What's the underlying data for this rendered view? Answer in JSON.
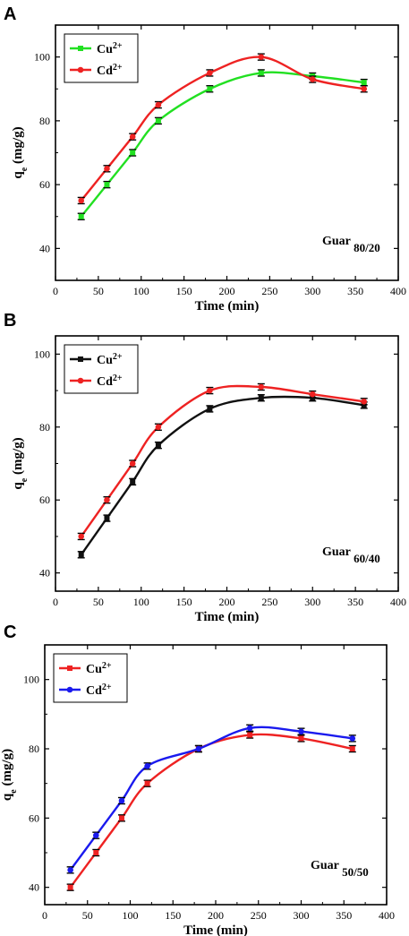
{
  "chart_data": [
    {
      "panel": "A",
      "type": "line",
      "xlabel": "Time (min)",
      "ylabel": "q",
      "ylabel_sub": "e",
      "ylabel_unit": " (mg/g)",
      "annotation": {
        "main": "Guar",
        "sub": "80/20"
      },
      "xlim": [
        0,
        400
      ],
      "ylim": [
        30,
        110
      ],
      "xticks": [
        0,
        50,
        100,
        150,
        200,
        250,
        300,
        350,
        400
      ],
      "yticks": [
        40,
        60,
        80,
        100
      ],
      "legend_position": "top-left",
      "series": [
        {
          "name": "Cu",
          "sup": "2+",
          "color": "#22e022",
          "marker": "square",
          "x": [
            30,
            60,
            90,
            120,
            180,
            240,
            300,
            360
          ],
          "y": [
            50,
            60,
            70,
            80,
            90,
            95,
            94,
            92
          ]
        },
        {
          "name": "Cd",
          "sup": "2+",
          "color": "#ee2222",
          "marker": "circle",
          "x": [
            30,
            60,
            90,
            120,
            180,
            240,
            300,
            360
          ],
          "y": [
            55,
            65,
            75,
            85,
            95,
            100,
            93,
            90
          ]
        }
      ]
    },
    {
      "panel": "B",
      "type": "line",
      "xlabel": "Time (min)",
      "ylabel": "q",
      "ylabel_sub": "e",
      "ylabel_unit": " (mg/g)",
      "annotation": {
        "main": "Guar",
        "sub": "60/40"
      },
      "xlim": [
        0,
        400
      ],
      "ylim": [
        35,
        105
      ],
      "xticks": [
        0,
        50,
        100,
        150,
        200,
        250,
        300,
        350,
        400
      ],
      "yticks": [
        40,
        60,
        80,
        100
      ],
      "legend_position": "top-left",
      "series": [
        {
          "name": "Cu",
          "sup": "2+",
          "color": "#111111",
          "marker": "square",
          "x": [
            30,
            60,
            90,
            120,
            180,
            240,
            300,
            360
          ],
          "y": [
            45,
            55,
            65,
            75,
            85,
            88,
            88,
            86
          ]
        },
        {
          "name": "Cd",
          "sup": "2+",
          "color": "#ee2222",
          "marker": "circle",
          "x": [
            30,
            60,
            90,
            120,
            180,
            240,
            300,
            360
          ],
          "y": [
            50,
            60,
            70,
            80,
            90,
            91,
            89,
            87
          ]
        }
      ]
    },
    {
      "panel": "C",
      "type": "line",
      "xlabel": "Time (min)",
      "ylabel": "q",
      "ylabel_sub": "e",
      "ylabel_unit": " (mg/g)",
      "annotation": {
        "main": "Guar",
        "sub": "50/50"
      },
      "xlim": [
        0,
        400
      ],
      "ylim": [
        35,
        110
      ],
      "xticks": [
        0,
        50,
        100,
        150,
        200,
        250,
        300,
        350,
        400
      ],
      "yticks": [
        40,
        60,
        80,
        100
      ],
      "legend_position": "top-left",
      "series": [
        {
          "name": "Cu",
          "sup": "2+",
          "color": "#ee2222",
          "marker": "square",
          "x": [
            30,
            60,
            90,
            120,
            180,
            240,
            300,
            360
          ],
          "y": [
            40,
            50,
            60,
            70,
            80,
            84,
            83,
            80
          ]
        },
        {
          "name": "Cd",
          "sup": "2+",
          "color": "#1a1aee",
          "marker": "circle",
          "x": [
            30,
            60,
            90,
            120,
            180,
            240,
            300,
            360
          ],
          "y": [
            45,
            55,
            65,
            75,
            80,
            86,
            85,
            83
          ]
        }
      ]
    }
  ]
}
